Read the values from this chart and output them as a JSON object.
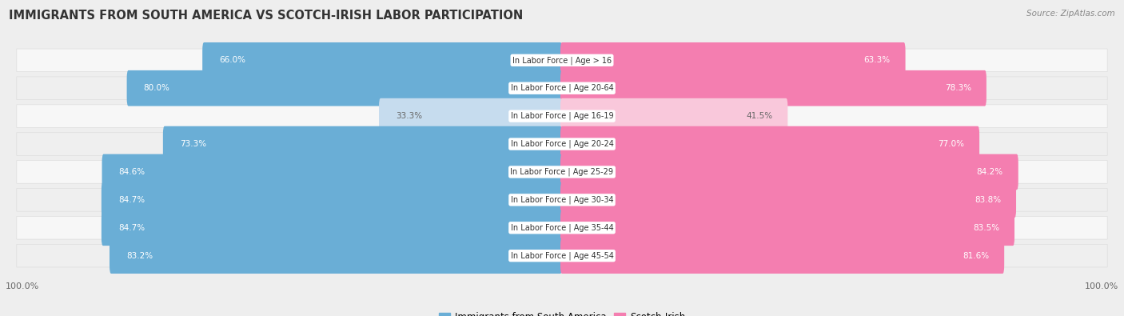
{
  "title": "IMMIGRANTS FROM SOUTH AMERICA VS SCOTCH-IRISH LABOR PARTICIPATION",
  "source": "Source: ZipAtlas.com",
  "categories": [
    "In Labor Force | Age > 16",
    "In Labor Force | Age 20-64",
    "In Labor Force | Age 16-19",
    "In Labor Force | Age 20-24",
    "In Labor Force | Age 25-29",
    "In Labor Force | Age 30-34",
    "In Labor Force | Age 35-44",
    "In Labor Force | Age 45-54"
  ],
  "south_america": [
    66.0,
    80.0,
    33.3,
    73.3,
    84.6,
    84.7,
    84.7,
    83.2
  ],
  "scotch_irish": [
    63.3,
    78.3,
    41.5,
    77.0,
    84.2,
    83.8,
    83.5,
    81.6
  ],
  "sa_color": "#6aaed6",
  "si_color": "#f47eb0",
  "sa_color_light": "#c6dcee",
  "si_color_light": "#f9c8db",
  "background_color": "#eeeeee",
  "row_bg": "#f5f5f5",
  "row_bg_alt": "#e8e8e8",
  "max_val": 100.0,
  "legend_sa": "Immigrants from South America",
  "legend_si": "Scotch-Irish"
}
